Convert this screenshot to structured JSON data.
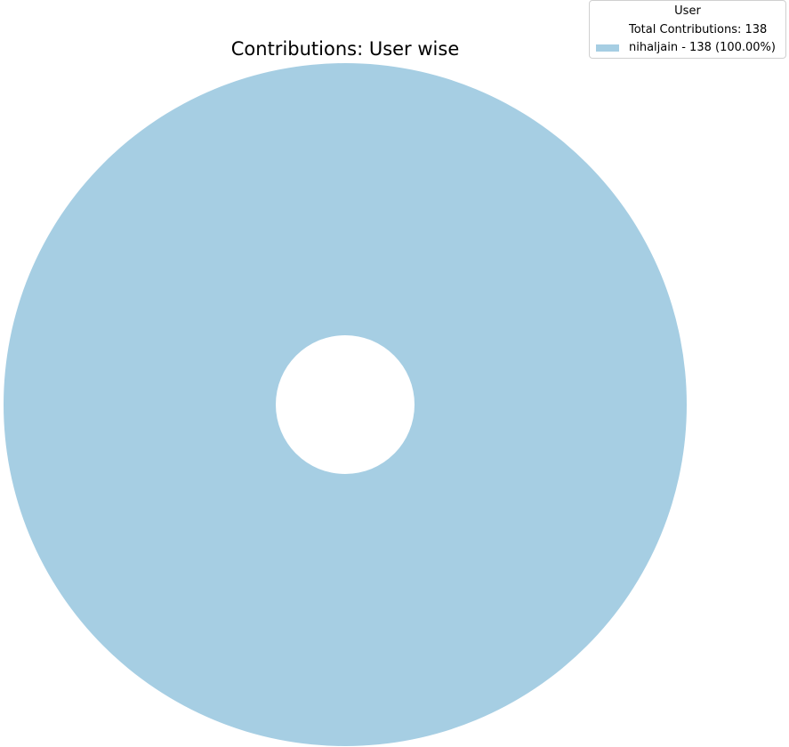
{
  "chart_data": {
    "type": "pie",
    "style": "donut",
    "title": "Contributions: User wise",
    "legend": {
      "title": "User",
      "placement": "top-right",
      "total_label": "Total Contributions: 138",
      "entries": [
        "nihaljain - 138 (100.00%)"
      ]
    },
    "categories": [
      "nihaljain"
    ],
    "values": [
      138
    ],
    "percentages": [
      100.0
    ],
    "colors": [
      "#a6cee3"
    ],
    "grid": false
  }
}
